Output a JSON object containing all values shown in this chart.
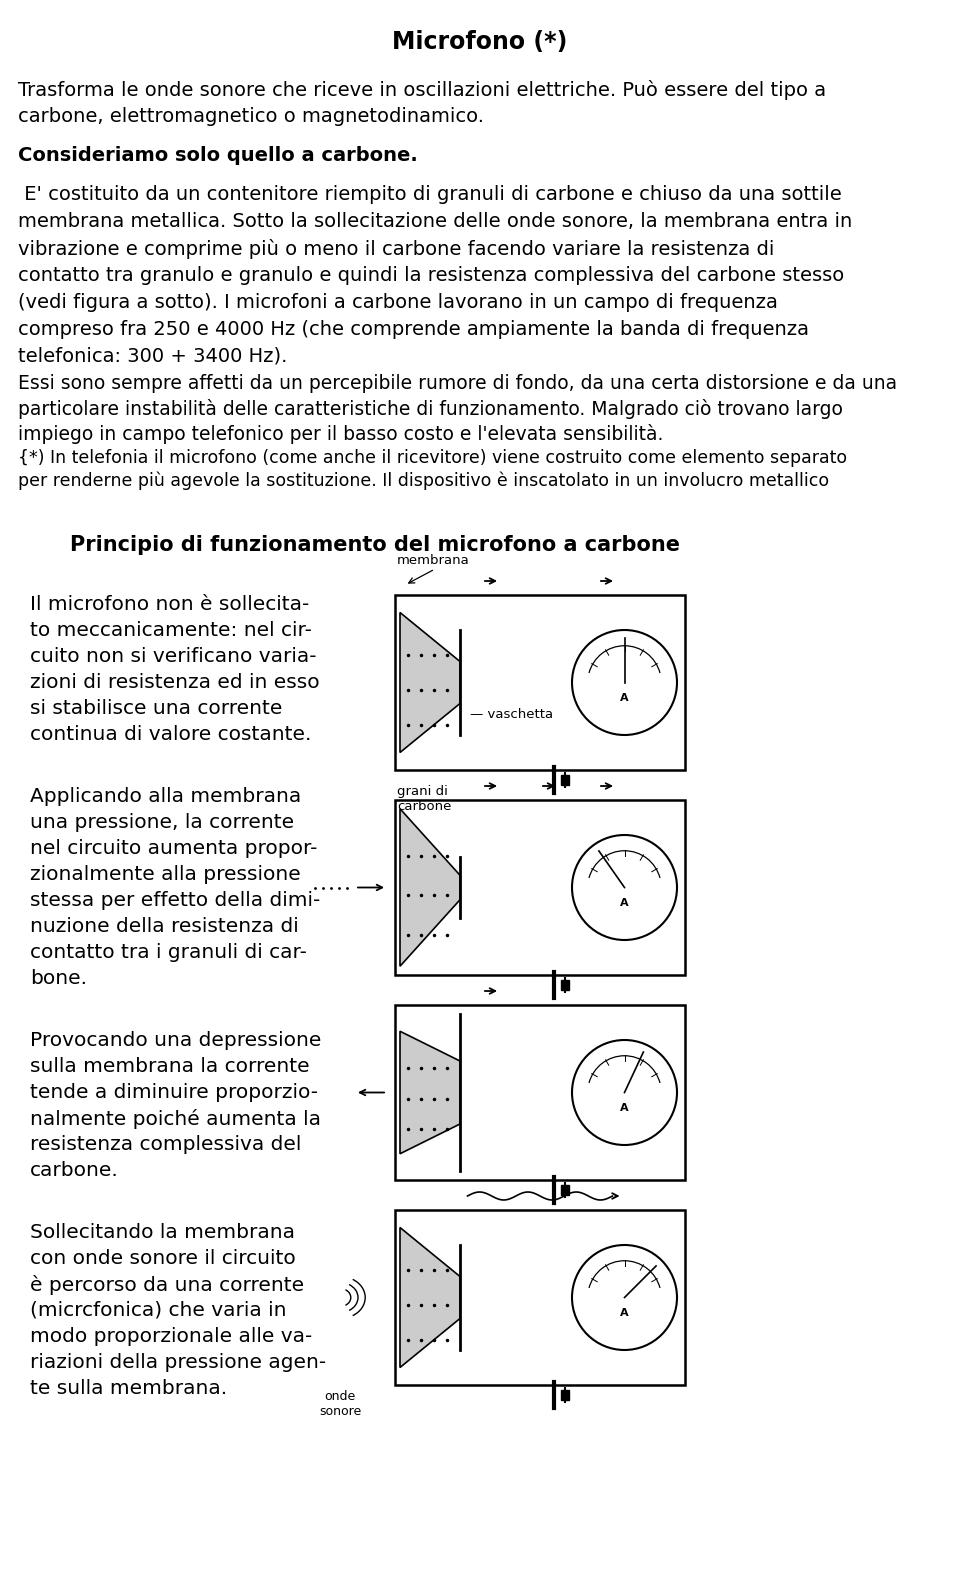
{
  "title": "Microfono (*)",
  "bg_color": "#ffffff",
  "text_color": "#000000",
  "title_fontsize": 17,
  "body_fontsize": 14,
  "body_fontsize_sm": 13,
  "col_fontsize": 14.5,
  "section_fontsize": 15,
  "para1_lines": [
    "Trasforma le onde sonore che riceve in oscillazioni elettriche. Può essere del tipo a",
    "carbone, elettromagnetico o magnetodinamico."
  ],
  "para2_bold": "Consideriamo solo quello a carbone.",
  "para3_lines": [
    " E' costituito da un contenitore riempito di granuli di carbone e chiuso da una sottile",
    "membrana metallica. Sotto la sollecitazione delle onde sonore, la membrana entra in",
    "vibrazione e comprime più o meno il carbone facendo variare la resistenza di",
    "contatto tra granulo e granulo e quindi la resistenza complessiva del carbone stesso",
    "(vedi figura a sotto). I microfoni a carbone lavorano in un campo di frequenza",
    "compreso fra 250 e 4000 Hz (che comprende ampiamente la banda di frequenza",
    "telefonica: 300 + 3400 Hz)."
  ],
  "para4_lines": [
    "Essi sono sempre affetti da un percepibile rumore di fondo, da una certa distorsione e da una",
    "particolare instabilità delle caratteristiche di funzionamento. Malgrado ciò trovano largo",
    "impiego in campo telefonico per il basso costo e l'elevata sensibilità."
  ],
  "para5_lines": [
    "{*) In telefonia il microfono (come anche il ricevitore) viene costruito come elemento separato",
    "per renderne più agevole la sostituzione. Il dispositivo è inscatolato in un involucro metallico"
  ],
  "section_title": "Principio di funzionamento del microfono a carbone",
  "col1_p1": [
    "Il microfono non è sollecita-",
    "to meccanicamente: nel cir-",
    "cuito non si verificano varia-",
    "zioni di resistenza ed in esso",
    "si stabilisce una corrente",
    "continua di valore costante."
  ],
  "col1_p2": [
    "Applicando alla membrana",
    "una pressione, la corrente",
    "nel circuito aumenta propor-",
    "zionalmente alla pressione",
    "stessa per effetto della dimi-",
    "nuzione della resistenza di",
    "contatto tra i granuli di car-",
    "bone."
  ],
  "col1_p3": [
    "Provocando una depressione",
    "sulla membrana la corrente",
    "tende a diminuire proporzio-",
    "nalmente poiché aumenta la",
    "resistenza complessiva del",
    "carbone."
  ],
  "col1_p4": [
    "Sollecitando la membrana",
    "con onde sonore il circuito",
    "è percorso da una corrente",
    "(micrcfonica) che varia in",
    "modo proporzionale alle va-",
    "riazioni della pressione agen-",
    "te sulla membrana."
  ]
}
